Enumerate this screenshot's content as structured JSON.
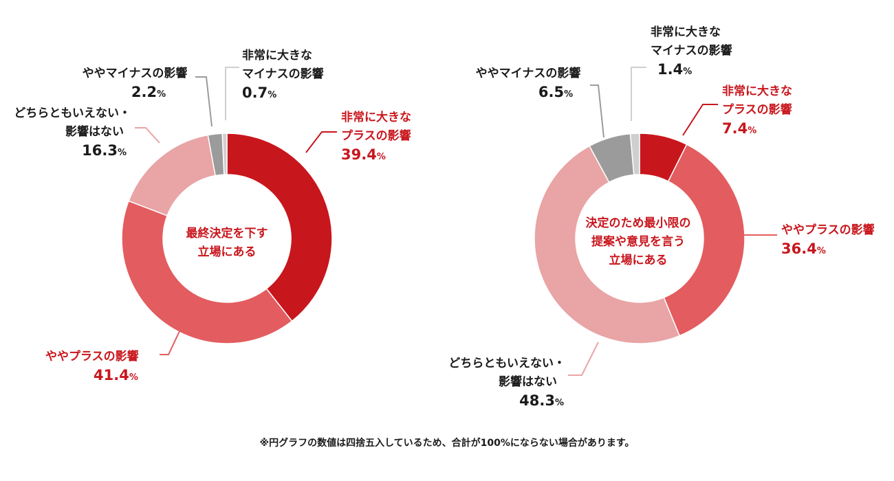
{
  "colors": {
    "strong_plus": "#c8161d",
    "plus": "#e35c5f",
    "neutral": "#e9a4a5",
    "minus": "#9b9b9b",
    "strong_minus": "#cfcfcf",
    "label_red": "#c8161d",
    "label_dark": "#1a1a1a"
  },
  "chart_data": [
    {
      "type": "pie",
      "donut": true,
      "title": "最終決定を下す立場にある",
      "title_lines": [
        "最終決定を下す",
        "立場にある"
      ],
      "unit": "%",
      "slices": [
        {
          "key": "strong_plus",
          "name_lines": [
            "非常に大きな",
            "プラスの影響"
          ],
          "value": 39.4,
          "value_label": "39.4",
          "color": "#c8161d"
        },
        {
          "key": "plus",
          "name_lines": [
            "ややプラスの影響"
          ],
          "value": 41.4,
          "value_label": "41.4",
          "color": "#e35c5f"
        },
        {
          "key": "neutral",
          "name_lines": [
            "どちらともいえない・",
            "影響はない"
          ],
          "value": 16.3,
          "value_label": "16.3",
          "color": "#e9a4a5"
        },
        {
          "key": "minus",
          "name_lines": [
            "ややマイナスの影響"
          ],
          "value": 2.2,
          "value_label": "2.2",
          "color": "#9b9b9b"
        },
        {
          "key": "strong_minus",
          "name_lines": [
            "非常に大きな",
            "マイナスの影響"
          ],
          "value": 0.7,
          "value_label": "0.7",
          "color": "#cfcfcf"
        }
      ]
    },
    {
      "type": "pie",
      "donut": true,
      "title": "決定のため最小限の提案や意見を言う立場にある",
      "title_lines": [
        "決定のため最小限の",
        "提案や意見を言う",
        "立場にある"
      ],
      "unit": "%",
      "slices": [
        {
          "key": "strong_plus",
          "name_lines": [
            "非常に大きな",
            "プラスの影響"
          ],
          "value": 7.4,
          "value_label": "7.4",
          "color": "#c8161d"
        },
        {
          "key": "plus",
          "name_lines": [
            "ややプラスの影響"
          ],
          "value": 36.4,
          "value_label": "36.4",
          "color": "#e35c5f"
        },
        {
          "key": "neutral",
          "name_lines": [
            "どちらともいえない・",
            "影響はない"
          ],
          "value": 48.3,
          "value_label": "48.3",
          "color": "#e9a4a5"
        },
        {
          "key": "minus",
          "name_lines": [
            "ややマイナスの影響"
          ],
          "value": 6.5,
          "value_label": "6.5",
          "color": "#9b9b9b"
        },
        {
          "key": "strong_minus",
          "name_lines": [
            "非常に大きな",
            "マイナスの影響"
          ],
          "value": 1.4,
          "value_label": "1.4",
          "color": "#cfcfcf"
        }
      ]
    }
  ],
  "footnote": "※円グラフの数値は四捨五入しているため、合計が100%にならない場合があります。"
}
